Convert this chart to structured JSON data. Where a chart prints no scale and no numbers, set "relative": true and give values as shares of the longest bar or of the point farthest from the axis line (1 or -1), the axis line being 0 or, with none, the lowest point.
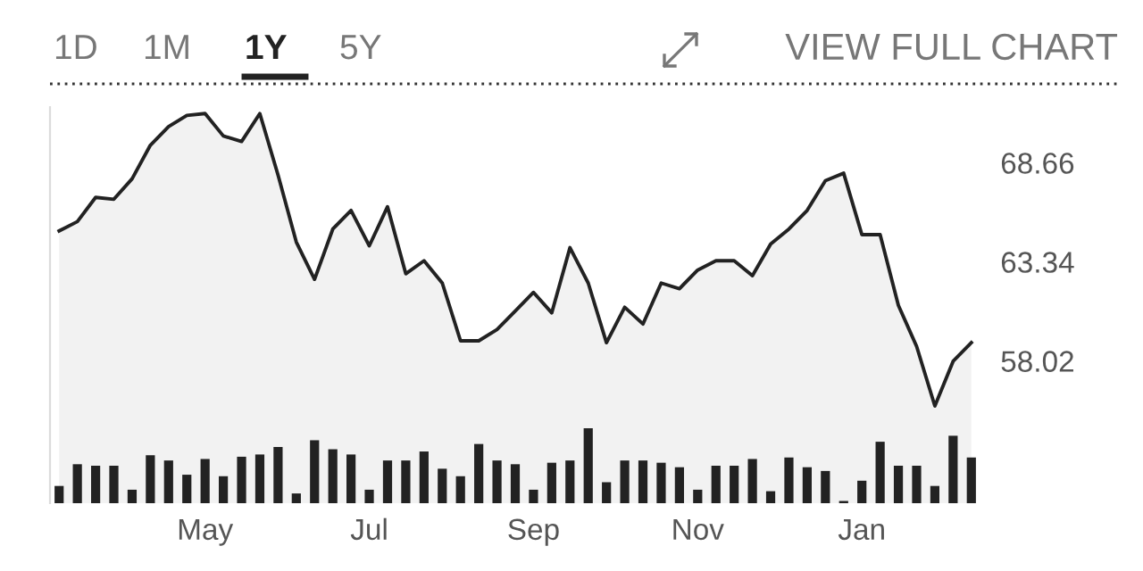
{
  "chart_data": [
    {
      "type": "area",
      "annotations": [
        "1D",
        "1M",
        "1Y",
        "5Y",
        "VIEW FULL CHART"
      ],
      "tick_labels": "y",
      "grid": false,
      "legend": false,
      "categories": [
        null,
        null,
        null,
        null,
        null,
        null,
        null,
        null,
        null,
        null,
        null,
        null,
        null,
        null,
        null,
        null,
        null,
        null,
        null,
        null,
        null,
        null,
        null,
        null,
        null,
        null,
        null,
        null,
        null,
        null,
        null,
        null,
        null,
        null,
        null,
        null,
        null,
        null,
        null,
        null,
        null,
        null,
        null,
        null,
        null,
        null,
        null,
        null,
        null,
        null,
        null
      ],
      "ylim": [
        50.38,
        71.65
      ],
      "yticks": [
        58.02,
        63.34,
        68.66
      ],
      "series": [
        {
          "color": "#222222",
          "values": [
            65.0,
            65.5,
            66.8,
            66.7,
            67.8,
            69.6,
            70.6,
            71.2,
            71.3,
            70.1,
            69.8,
            71.3,
            68.0,
            64.4,
            62.4,
            65.1,
            66.1,
            64.2,
            66.3,
            62.7,
            63.4,
            62.2,
            59.1,
            59.1,
            59.7,
            60.7,
            61.7,
            60.6,
            64.1,
            62.2,
            59.0,
            60.9,
            60.0,
            62.2,
            61.9,
            62.9,
            63.4,
            63.4,
            62.6,
            64.3,
            65.1,
            66.1,
            67.7,
            68.1,
            64.8,
            64.8,
            61.0,
            58.8,
            55.6,
            58.0,
            59.0
          ]
        }
      ]
    },
    {
      "type": "bar",
      "relative": true,
      "tick_labels": "x",
      "grid": false,
      "legend": false,
      "categories": [
        null,
        null,
        null,
        null,
        null,
        null,
        null,
        null,
        "May",
        null,
        null,
        null,
        null,
        null,
        null,
        null,
        null,
        "Jul",
        null,
        null,
        null,
        null,
        null,
        null,
        null,
        null,
        "Sep",
        null,
        null,
        null,
        null,
        null,
        null,
        null,
        null,
        "Nov",
        null,
        null,
        null,
        null,
        null,
        null,
        null,
        null,
        "Jan",
        null,
        null,
        null,
        null,
        null,
        null
      ],
      "series": [
        {
          "color": "#222222",
          "values": [
            0.23,
            0.52,
            0.5,
            0.5,
            0.18,
            0.64,
            0.57,
            0.38,
            0.59,
            0.36,
            0.62,
            0.65,
            0.75,
            0.13,
            0.84,
            0.72,
            0.65,
            0.18,
            0.57,
            0.57,
            0.69,
            0.46,
            0.36,
            0.79,
            0.57,
            0.52,
            0.18,
            0.54,
            0.57,
            1,
            0.28,
            0.57,
            0.57,
            0.54,
            0.48,
            0.18,
            0.5,
            0.5,
            0.59,
            0.16,
            0.61,
            0.48,
            0.43,
            0.03,
            0.3,
            0.82,
            0.5,
            0.5,
            0.23,
            0.9,
            0.61
          ]
        }
      ]
    }
  ]
}
